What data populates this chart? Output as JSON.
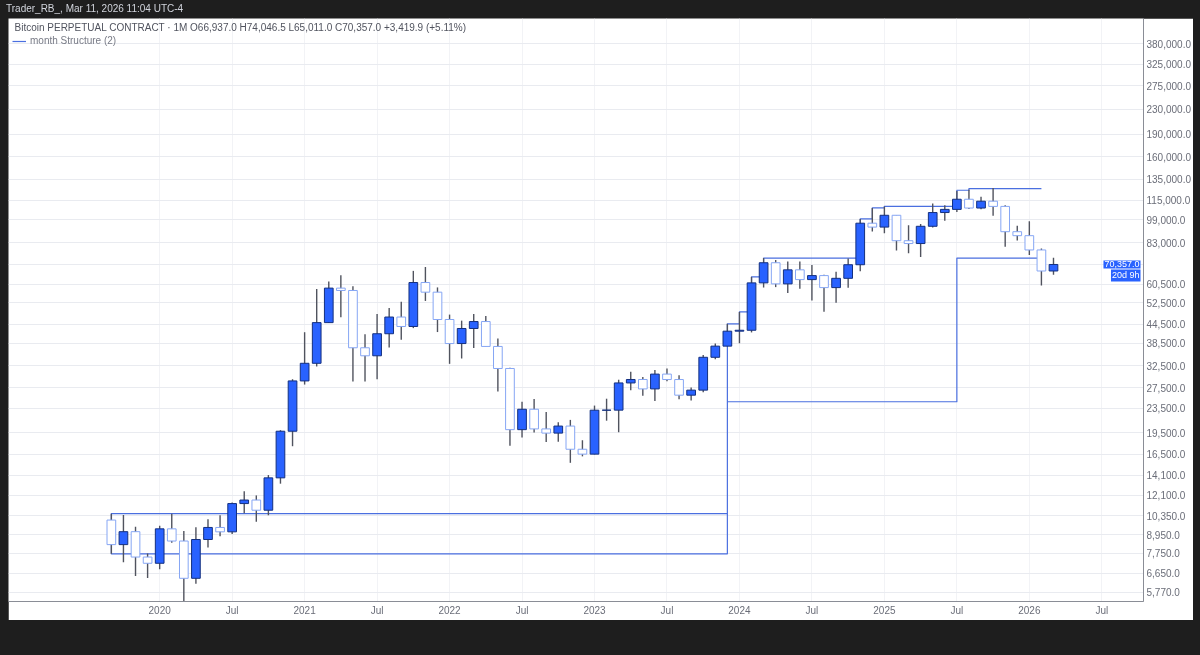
{
  "chart_data": {
    "type": "candlestick",
    "title": "Trader_RB_, Mar 11, 2026 11:04 UTC-4",
    "subtitle": "Bitcoin PERPETUAL CONTRACT · 1M   O66,937.0  H74,046.5  L65,011.0  C70,357.0  +3,419.9 (+5.11%)",
    "x": [
      "2019-09",
      "2019-10",
      "2019-11",
      "2019-12",
      "2020-01",
      "2020-02",
      "2020-03",
      "2020-04",
      "2020-05",
      "2020-06",
      "2020-07",
      "2020-08",
      "2020-09",
      "2020-10",
      "2020-11",
      "2020-12",
      "2021-01",
      "2021-02",
      "2021-03",
      "2021-04",
      "2021-05",
      "2021-06",
      "2021-07",
      "2021-08",
      "2021-09",
      "2021-10",
      "2021-11",
      "2021-12",
      "2022-01",
      "2022-02",
      "2022-03",
      "2022-04",
      "2022-05",
      "2022-06",
      "2022-07",
      "2022-08",
      "2022-09",
      "2022-10",
      "2022-11",
      "2022-12",
      "2023-01",
      "2023-02",
      "2023-03",
      "2023-04",
      "2023-05",
      "2023-06",
      "2023-07",
      "2023-08",
      "2023-09",
      "2023-10",
      "2023-11",
      "2023-12",
      "2024-01",
      "2024-02",
      "2024-03",
      "2024-04",
      "2024-05",
      "2024-06",
      "2024-07",
      "2024-08",
      "2024-09",
      "2024-10",
      "2024-11",
      "2024-12",
      "2025-01",
      "2025-02",
      "2025-03",
      "2025-04",
      "2025-05",
      "2025-06",
      "2025-07",
      "2025-08",
      "2025-09",
      "2025-10",
      "2025-11",
      "2025-12",
      "2026-01",
      "2026-02",
      "2026-03"
    ],
    "ohlc": [
      [
        10000,
        10500,
        7730,
        8290
      ],
      [
        8290,
        10400,
        7250,
        9150
      ],
      [
        9150,
        9510,
        6520,
        7540
      ],
      [
        7540,
        7750,
        6430,
        7190
      ],
      [
        7190,
        9580,
        6870,
        9350
      ],
      [
        9350,
        10500,
        8410,
        8520
      ],
      [
        8520,
        9190,
        5370,
        6410
      ],
      [
        6410,
        9470,
        6150,
        8620
      ],
      [
        8620,
        10070,
        8110,
        9450
      ],
      [
        9450,
        10380,
        8830,
        9140
      ],
      [
        9140,
        11440,
        8990,
        11340
      ],
      [
        11340,
        12470,
        10530,
        11650
      ],
      [
        11650,
        12070,
        9880,
        10780
      ],
      [
        10780,
        14100,
        10370,
        13800
      ],
      [
        13800,
        19860,
        13200,
        19700
      ],
      [
        19700,
        29300,
        17570,
        28920
      ],
      [
        28920,
        41950,
        28130,
        33090
      ],
      [
        33090,
        58350,
        32300,
        45140
      ],
      [
        45140,
        61780,
        45000,
        58740
      ],
      [
        58740,
        64850,
        47050,
        57690
      ],
      [
        57690,
        59600,
        28800,
        37250
      ],
      [
        37250,
        41330,
        28800,
        35040
      ],
      [
        35040,
        48170,
        29280,
        41460
      ],
      [
        41460,
        50500,
        37330,
        47100
      ],
      [
        47100,
        52920,
        39600,
        43820
      ],
      [
        43820,
        67000,
        43280,
        61300
      ],
      [
        61300,
        69000,
        53260,
        56950
      ],
      [
        56950,
        59050,
        42000,
        46220
      ],
      [
        46220,
        47990,
        32950,
        38470
      ],
      [
        38470,
        45820,
        34320,
        43160
      ],
      [
        43160,
        48190,
        37160,
        45510
      ],
      [
        45510,
        47440,
        37580,
        37630
      ],
      [
        37630,
        40020,
        26700,
        31800
      ],
      [
        31800,
        31980,
        17620,
        19940
      ],
      [
        19940,
        24670,
        18780,
        23300
      ],
      [
        23300,
        25200,
        19520,
        20050
      ],
      [
        20050,
        22800,
        18130,
        19420
      ],
      [
        19420,
        21090,
        18190,
        20490
      ],
      [
        20490,
        21480,
        15480,
        17170
      ],
      [
        17170,
        18390,
        16260,
        16540
      ],
      [
        16540,
        23960,
        16500,
        23130
      ],
      [
        23130,
        25250,
        21350,
        23140
      ],
      [
        23140,
        29190,
        19550,
        28480
      ],
      [
        28480,
        31000,
        26940,
        29240
      ],
      [
        29240,
        29820,
        25810,
        27210
      ],
      [
        27210,
        31430,
        24800,
        30470
      ],
      [
        30470,
        31800,
        28860,
        29230
      ],
      [
        29230,
        30230,
        25170,
        25940
      ],
      [
        25940,
        27490,
        24900,
        26960
      ],
      [
        26960,
        35280,
        26540,
        34640
      ],
      [
        34640,
        38450,
        34100,
        37720
      ],
      [
        37720,
        44730,
        37630,
        42280
      ],
      [
        42280,
        48970,
        38560,
        42580
      ],
      [
        42580,
        64000,
        41880,
        61130
      ],
      [
        61130,
        73880,
        59000,
        71290
      ],
      [
        71290,
        72800,
        59190,
        60670
      ],
      [
        60670,
        71980,
        56550,
        67530
      ],
      [
        67530,
        71950,
        58400,
        62680
      ],
      [
        62680,
        70080,
        53490,
        64630
      ],
      [
        64630,
        65100,
        49000,
        58970
      ],
      [
        58970,
        66500,
        52550,
        63300
      ],
      [
        63300,
        73620,
        58900,
        70220
      ],
      [
        70220,
        99590,
        66840,
        96410
      ],
      [
        96410,
        108350,
        90500,
        93580
      ],
      [
        93580,
        109590,
        89260,
        102430
      ],
      [
        102430,
        102500,
        78260,
        84350
      ],
      [
        84350,
        95000,
        76600,
        82550
      ],
      [
        82550,
        95760,
        74500,
        94170
      ],
      [
        94170,
        111980,
        93380,
        104590
      ],
      [
        104590,
        110530,
        98200,
        107140
      ],
      [
        107140,
        123220,
        105100,
        115760
      ],
      [
        115760,
        124470,
        107350,
        108240
      ],
      [
        108240,
        117900,
        107250,
        114050
      ],
      [
        114050,
        126200,
        102000,
        109600
      ],
      [
        109600,
        110600,
        80600,
        90360
      ],
      [
        90360,
        94600,
        84450,
        87650
      ],
      [
        87650,
        97900,
        75600,
        78600
      ],
      [
        78600,
        79500,
        59900,
        66937
      ],
      [
        66937.0,
        74046.5,
        65011.0,
        70357.0
      ]
    ],
    "colors": [
      "#86a6f4",
      "#2962ff",
      "#86a6f4",
      "#86a6f4",
      "#2962ff",
      "#86a6f4",
      "#86a6f4",
      "#2962ff",
      "#2962ff",
      "#86a6f4",
      "#2962ff",
      "#2962ff",
      "#86a6f4",
      "#2962ff",
      "#2962ff",
      "#2962ff",
      "#2962ff",
      "#2962ff",
      "#2962ff",
      "#86a6f4",
      "#86a6f4",
      "#86a6f4",
      "#2962ff",
      "#2962ff",
      "#86a6f4",
      "#2962ff",
      "#86a6f4",
      "#86a6f4",
      "#86a6f4",
      "#2962ff",
      "#2962ff",
      "#86a6f4",
      "#86a6f4",
      "#86a6f4",
      "#2962ff",
      "#86a6f4",
      "#86a6f4",
      "#2962ff",
      "#86a6f4",
      "#86a6f4",
      "#2962ff",
      "#2962ff",
      "#2962ff",
      "#2962ff",
      "#86a6f4",
      "#2962ff",
      "#86a6f4",
      "#86a6f4",
      "#2962ff",
      "#2962ff",
      "#2962ff",
      "#2962ff",
      "#2962ff",
      "#2962ff",
      "#2962ff",
      "#86a6f4",
      "#2962ff",
      "#86a6f4",
      "#2962ff",
      "#86a6f4",
      "#2962ff",
      "#2962ff",
      "#2962ff",
      "#86a6f4",
      "#2962ff",
      "#86a6f4",
      "#86a6f4",
      "#2962ff",
      "#2962ff",
      "#2962ff",
      "#2962ff",
      "#86a6f4",
      "#2962ff",
      "#86a6f4",
      "#86a6f4",
      "#86a6f4",
      "#86a6f4",
      "#86a6f4",
      "#2962ff"
    ],
    "series": [
      {
        "name": "month Structure (2)",
        "type": "line",
        "color": "#4a6fe0",
        "x": [
          "2023-12",
          "2019-09",
          "2019-09",
          "2023-12",
          "2023-12",
          "2024-01",
          "2024-01",
          "2024-02",
          "2024-02",
          "2024-03",
          "2024-03",
          "2024-11",
          "2024-11",
          "2024-12",
          "2024-12",
          "2025-01",
          "2025-01",
          "2025-07",
          "2025-07",
          "2025-08",
          "2025-08",
          "2026-02"
        ],
        "values": [
          10500,
          10500,
          7730,
          7730,
          44730,
          44730,
          48970,
          48970,
          64000,
          64000,
          73880,
          73880,
          99590,
          99590,
          108350,
          108350,
          109590,
          109590,
          124000,
          124000,
          125500,
          125500
        ]
      },
      {
        "type": "line",
        "color": "#4a6fe0",
        "x": [
          "2023-12",
          "2025-07",
          "2025-07",
          "2026-02"
        ],
        "values": [
          24670,
          24670,
          73880,
          73880
        ]
      }
    ],
    "annotations": [
      "70,357.0",
      "20d 9h"
    ],
    "log": true,
    "grid": true,
    "legend": "top left",
    "xlim": [
      "2018-12-16",
      "2026-10-15"
    ],
    "xticks": [
      {
        "value": "2020-01",
        "label": "2020"
      },
      {
        "value": "2020-07",
        "label": "Jul"
      },
      {
        "value": "2021-01",
        "label": "2021"
      },
      {
        "value": "2021-07",
        "label": "Jul"
      },
      {
        "value": "2022-01",
        "label": "2022"
      },
      {
        "value": "2022-07",
        "label": "Jul"
      },
      {
        "value": "2023-01",
        "label": "2023"
      },
      {
        "value": "2023-07",
        "label": "Jul"
      },
      {
        "value": "2024-01",
        "label": "2024"
      },
      {
        "value": "2024-07",
        "label": "Jul"
      },
      {
        "value": "2025-01",
        "label": "2025"
      },
      {
        "value": "2025-07",
        "label": "Jul"
      },
      {
        "value": "2026-01",
        "label": "2026"
      },
      {
        "value": "2026-07",
        "label": "Jul"
      }
    ],
    "ylim": [
      5370,
      460000
    ],
    "yticks": [
      {
        "value": 5770,
        "label": "5,770.0"
      },
      {
        "value": 6650,
        "label": "6,650.0"
      },
      {
        "value": 7750,
        "label": "7,750.0"
      },
      {
        "value": 8950,
        "label": "8,950.0"
      },
      {
        "value": 10350,
        "label": "10,350.0"
      },
      {
        "value": 12100,
        "label": "12,100.0"
      },
      {
        "value": 14100,
        "label": "14,100.0"
      },
      {
        "value": 16500,
        "label": "16,500.0"
      },
      {
        "value": 19500,
        "label": "19,500.0"
      },
      {
        "value": 23500,
        "label": "23,500.0"
      },
      {
        "value": 27500,
        "label": "27,500.0"
      },
      {
        "value": 32500,
        "label": "32,500.0"
      },
      {
        "value": 38500,
        "label": "38,500.0"
      },
      {
        "value": 44500,
        "label": "44,500.0"
      },
      {
        "value": 52500,
        "label": "52,500.0"
      },
      {
        "value": 60500,
        "label": "60,500.0"
      },
      {
        "value": 70500,
        "label": null
      },
      {
        "value": 83000,
        "label": "83,000.0"
      },
      {
        "value": 99000,
        "label": "99,000.0"
      },
      {
        "value": 115000,
        "label": "115,000.0"
      },
      {
        "value": 135000,
        "label": "135,000.0"
      },
      {
        "value": 160000,
        "label": "160,000.0"
      },
      {
        "value": 190000,
        "label": "190,000.0"
      },
      {
        "value": 230000,
        "label": "230,000.0"
      },
      {
        "value": 275000,
        "label": "275,000.0"
      },
      {
        "value": 325000,
        "label": "325,000.0"
      },
      {
        "value": 380000,
        "label": "380,000.0"
      }
    ]
  }
}
